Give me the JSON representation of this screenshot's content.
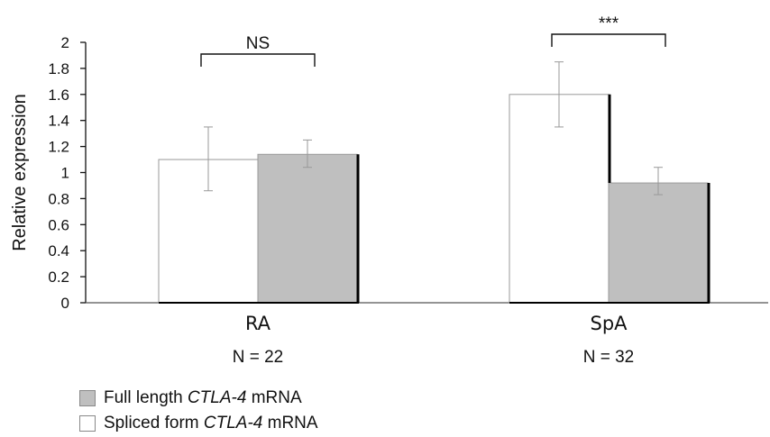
{
  "chart_data": {
    "type": "bar",
    "ylabel": "Relative expression",
    "ylim": [
      0,
      2
    ],
    "yticks": [
      "0",
      "0.2",
      "0.4",
      "0.6",
      "0.8",
      "1",
      "1.2",
      "1.4",
      "1.6",
      "1.8",
      "2"
    ],
    "categories": [
      "RA",
      "SpA"
    ],
    "category_counts": [
      "N = 22",
      "N = 32"
    ],
    "series": [
      {
        "name": "Spliced form CTLA-4 mRNA",
        "color": "#ffffff",
        "values": [
          1.1,
          1.6
        ],
        "error_low": [
          0.86,
          1.35
        ],
        "error_high": [
          1.35,
          1.85
        ]
      },
      {
        "name": "Full length CTLA-4 mRNA",
        "color": "#bfbfbf",
        "values": [
          1.14,
          0.92
        ],
        "error_low": [
          1.04,
          0.83
        ],
        "error_high": [
          1.25,
          1.04
        ]
      }
    ],
    "significance": [
      "NS",
      "***"
    ],
    "grid": false
  },
  "legend": [
    {
      "prefix": "Full length ",
      "gene": "CTLA-4",
      "suffix": " mRNA",
      "color": "#bfbfbf"
    },
    {
      "prefix": "Spliced form ",
      "gene": "CTLA-4",
      "suffix": " mRNA",
      "color": "#ffffff"
    }
  ]
}
